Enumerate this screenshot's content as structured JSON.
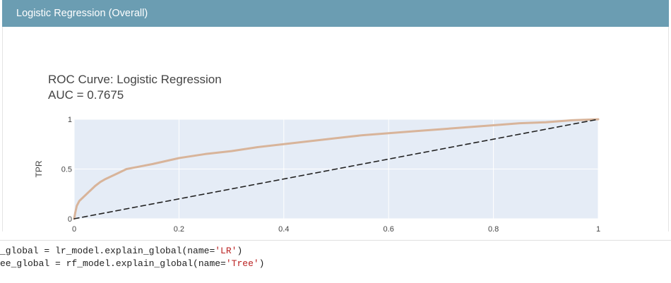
{
  "header": {
    "title": "Logistic Regression (Overall)"
  },
  "chart_data": {
    "type": "line",
    "title": "ROC Curve: Logistic Regression",
    "subtitle": "AUC = 0.7675",
    "xlabel": "",
    "ylabel": "TPR",
    "xlim": [
      0,
      1
    ],
    "ylim": [
      0,
      1
    ],
    "x_ticks": [
      "0",
      "0.2",
      "0.4",
      "0.6",
      "0.8",
      "1"
    ],
    "y_ticks": [
      "0",
      "0.5",
      "1"
    ],
    "grid": true,
    "series": [
      {
        "color": "#d8b49a",
        "style": "solid",
        "x": [
          0,
          0.002,
          0.005,
          0.01,
          0.02,
          0.03,
          0.04,
          0.05,
          0.06,
          0.08,
          0.1,
          0.12,
          0.15,
          0.2,
          0.25,
          0.3,
          0.35,
          0.4,
          0.45,
          0.5,
          0.55,
          0.6,
          0.65,
          0.7,
          0.75,
          0.8,
          0.85,
          0.9,
          0.95,
          1.0
        ],
        "y": [
          0,
          0.06,
          0.13,
          0.18,
          0.23,
          0.28,
          0.33,
          0.37,
          0.4,
          0.45,
          0.5,
          0.52,
          0.55,
          0.61,
          0.65,
          0.68,
          0.72,
          0.75,
          0.78,
          0.81,
          0.84,
          0.86,
          0.88,
          0.9,
          0.92,
          0.94,
          0.96,
          0.97,
          0.99,
          1.0
        ]
      },
      {
        "color": "#222222",
        "style": "dash",
        "x": [
          0,
          1
        ],
        "y": [
          0,
          1
        ]
      }
    ]
  },
  "code": {
    "line1": {
      "prefix": "_global = lr_model.explain_global(name=",
      "string": "'LR'",
      "suffix": ")"
    },
    "line2": {
      "prefix": "ee_global = rf_model.explain_global(name=",
      "string": "'Tree'",
      "suffix": ")"
    }
  }
}
